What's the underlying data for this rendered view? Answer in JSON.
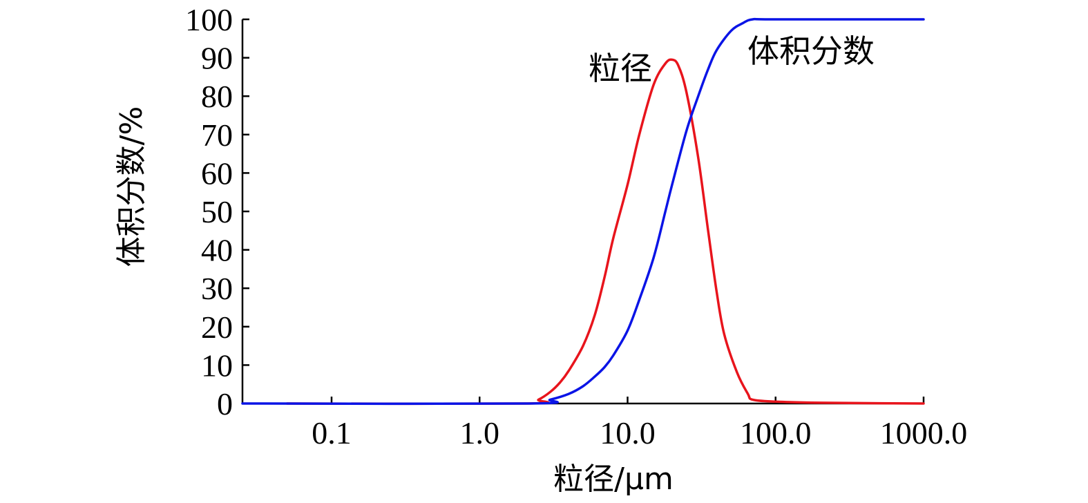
{
  "chart_data": {
    "type": "line",
    "title": "",
    "xlabel": "粒径/μm",
    "ylabel": "体积分数/%",
    "x_scale": "log",
    "xlim": [
      0.025,
      1000
    ],
    "ylim": [
      0,
      100
    ],
    "x_ticks": [
      0.1,
      1.0,
      10.0,
      100.0,
      1000.0
    ],
    "x_tick_labels": [
      "0.1",
      "1.0",
      "10.0",
      "100.0",
      "1000.0"
    ],
    "y_ticks": [
      0,
      10,
      20,
      30,
      40,
      50,
      60,
      70,
      80,
      90,
      100
    ],
    "y_tick_labels": [
      "0",
      "10",
      "20",
      "30",
      "40",
      "50",
      "60",
      "70",
      "80",
      "90",
      "100"
    ],
    "grid": false,
    "legend": "none",
    "series": [
      {
        "name": "粒径",
        "color": "#e8141c",
        "points": [
          [
            0.05,
            0
          ],
          [
            2.1,
            0
          ],
          [
            2.5,
            1
          ],
          [
            3.0,
            3
          ],
          [
            3.5,
            5.5
          ],
          [
            4.0,
            8.5
          ],
          [
            5.0,
            15
          ],
          [
            6.0,
            23
          ],
          [
            7.0,
            33
          ],
          [
            8.0,
            43
          ],
          [
            10.0,
            57
          ],
          [
            12.0,
            70
          ],
          [
            15.0,
            83
          ],
          [
            18.0,
            88.5
          ],
          [
            20.0,
            89.5
          ],
          [
            22.0,
            88
          ],
          [
            25.0,
            81
          ],
          [
            30.0,
            64
          ],
          [
            35.0,
            45
          ],
          [
            40.0,
            29
          ],
          [
            45.0,
            18
          ],
          [
            55.0,
            8
          ],
          [
            65.0,
            2.5
          ],
          [
            70.0,
            1
          ],
          [
            100.0,
            0.5
          ],
          [
            200.0,
            0.2
          ],
          [
            1000.0,
            0
          ]
        ]
      },
      {
        "name": "体积分数",
        "color": "#0a14e6",
        "points": [
          [
            0.025,
            0
          ],
          [
            2.2,
            0
          ],
          [
            3.0,
            1
          ],
          [
            4.0,
            2.5
          ],
          [
            5.0,
            4.5
          ],
          [
            6.0,
            7
          ],
          [
            7.0,
            9.5
          ],
          [
            8.0,
            12.5
          ],
          [
            10.0,
            19
          ],
          [
            12.0,
            27
          ],
          [
            15.0,
            38
          ],
          [
            18.0,
            50
          ],
          [
            20.0,
            57
          ],
          [
            25.0,
            71
          ],
          [
            30.0,
            80
          ],
          [
            35.0,
            87
          ],
          [
            40.0,
            92
          ],
          [
            50.0,
            97
          ],
          [
            60.0,
            99
          ],
          [
            70.0,
            100
          ],
          [
            100.0,
            100
          ],
          [
            1000.0,
            100
          ]
        ]
      }
    ],
    "annotations": [
      {
        "text": "粒径",
        "series": "粒径"
      },
      {
        "text": "体积分数",
        "series": "体积分数"
      }
    ]
  }
}
